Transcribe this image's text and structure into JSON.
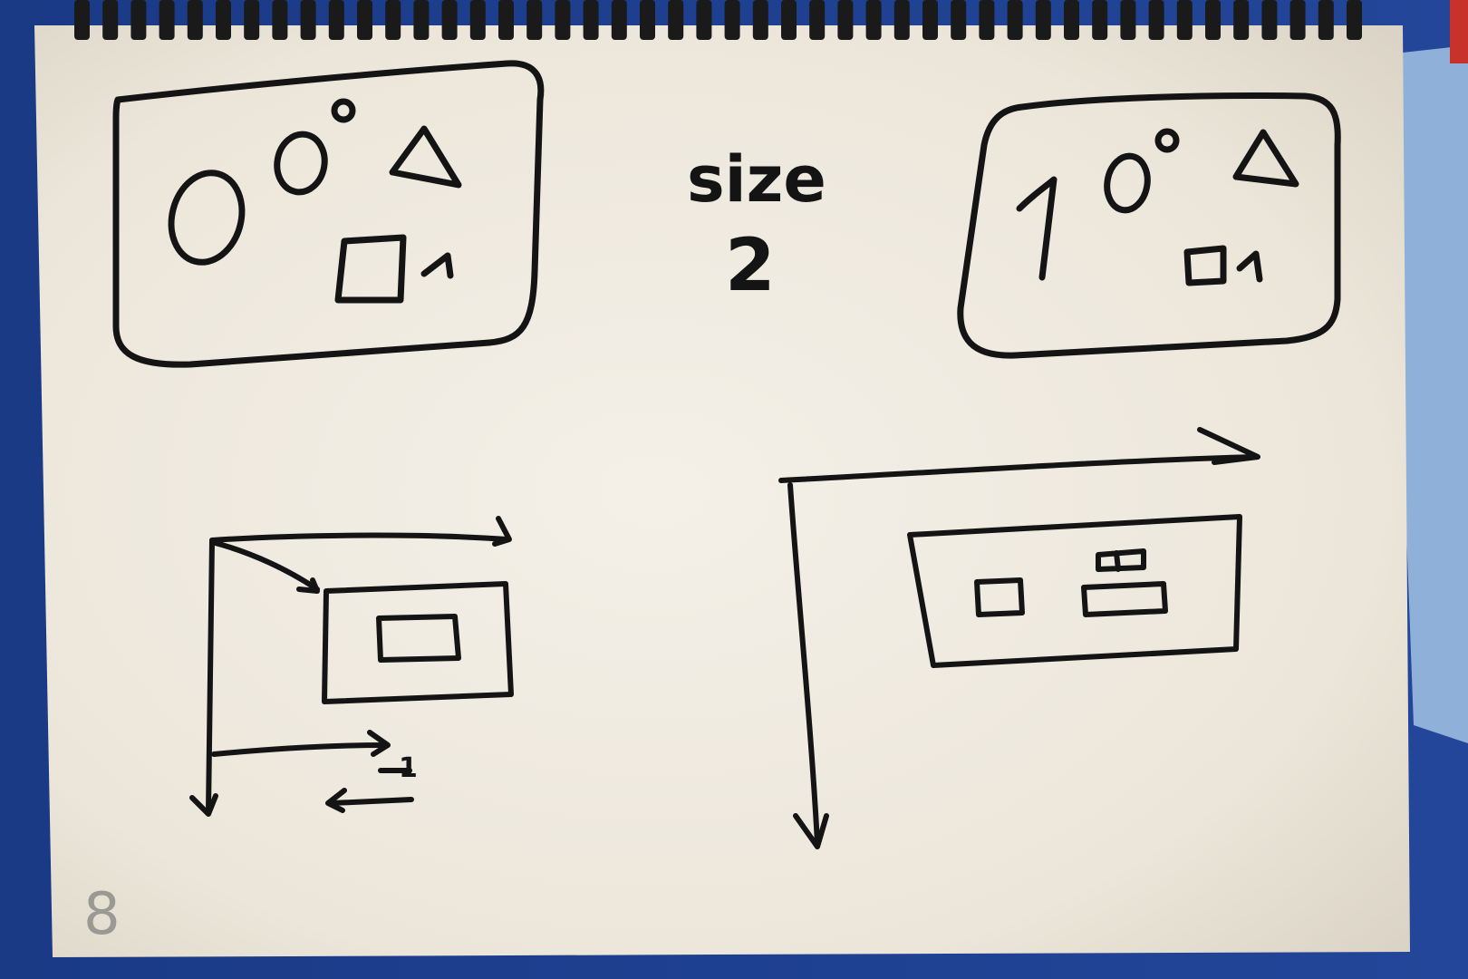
{
  "colors": {
    "background_fabric": "#1d3f8c",
    "paper": "#f3efe7",
    "ink": "#141414",
    "page_number_ink": "#9a9a94",
    "spiral": "#1a1a1a"
  },
  "sketch": {
    "left_frame": {
      "digit_large": "0",
      "digit_small": "0",
      "degree_mark": "°",
      "square_label": "1"
    },
    "title": {
      "word": "size",
      "number": "2"
    },
    "right_frame": {
      "digit_large": "1",
      "digit_small": "0",
      "degree_mark": "°",
      "square_label": "1"
    },
    "bottom_left_axis_label": "1",
    "page_number": "8"
  }
}
